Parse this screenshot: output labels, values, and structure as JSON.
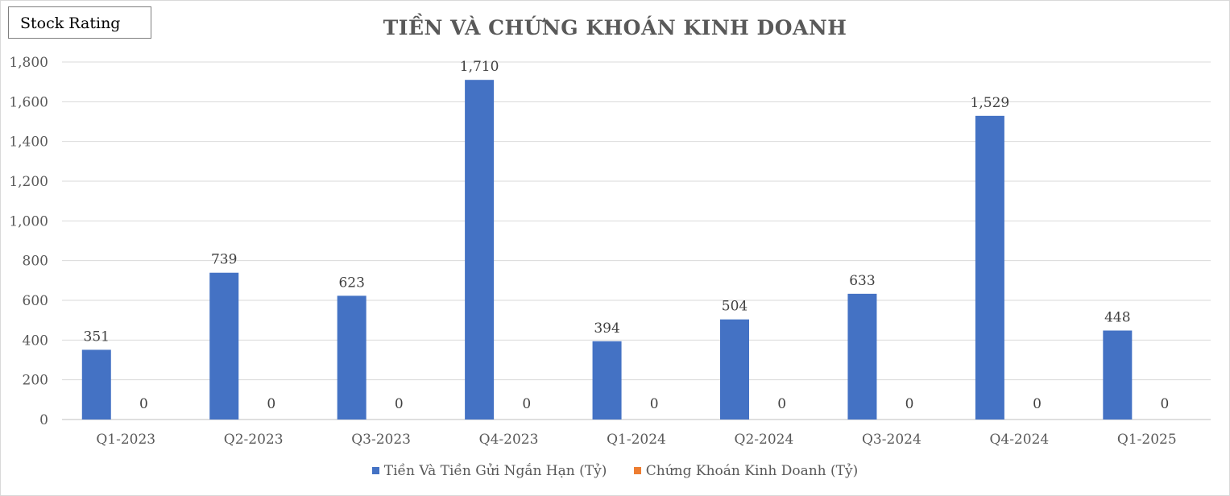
{
  "badge": {
    "label": "Stock Rating"
  },
  "chart_data": {
    "type": "bar",
    "title": "TIỀN VÀ CHỨNG KHOÁN KINH DOANH",
    "xlabel": "",
    "ylabel": "",
    "ylim": [
      0,
      1800
    ],
    "yticks": [
      "0",
      "200",
      "400",
      "600",
      "800",
      "1,000",
      "1,200",
      "1,400",
      "1,600",
      "1,800"
    ],
    "grid": true,
    "legend_position": "bottom",
    "categories": [
      "Q1-2023",
      "Q2-2023",
      "Q3-2023",
      "Q4-2023",
      "Q1-2024",
      "Q2-2024",
      "Q3-2024",
      "Q4-2024",
      "Q1-2025"
    ],
    "series": [
      {
        "name": "Tiền Và Tiền Gửi Ngắn Hạn (Tỷ)",
        "color": "#4472c4",
        "values": [
          351,
          739,
          623,
          1710,
          394,
          504,
          633,
          1529,
          448
        ],
        "labels": [
          "351",
          "739",
          "623",
          "1,710",
          "394",
          "504",
          "633",
          "1,529",
          "448"
        ]
      },
      {
        "name": "Chứng Khoán Kinh Doanh (Tỷ)",
        "color": "#ed7d31",
        "values": [
          0,
          0,
          0,
          0,
          0,
          0,
          0,
          0,
          0
        ],
        "labels": [
          "0",
          "0",
          "0",
          "0",
          "0",
          "0",
          "0",
          "0",
          "0"
        ]
      }
    ]
  }
}
